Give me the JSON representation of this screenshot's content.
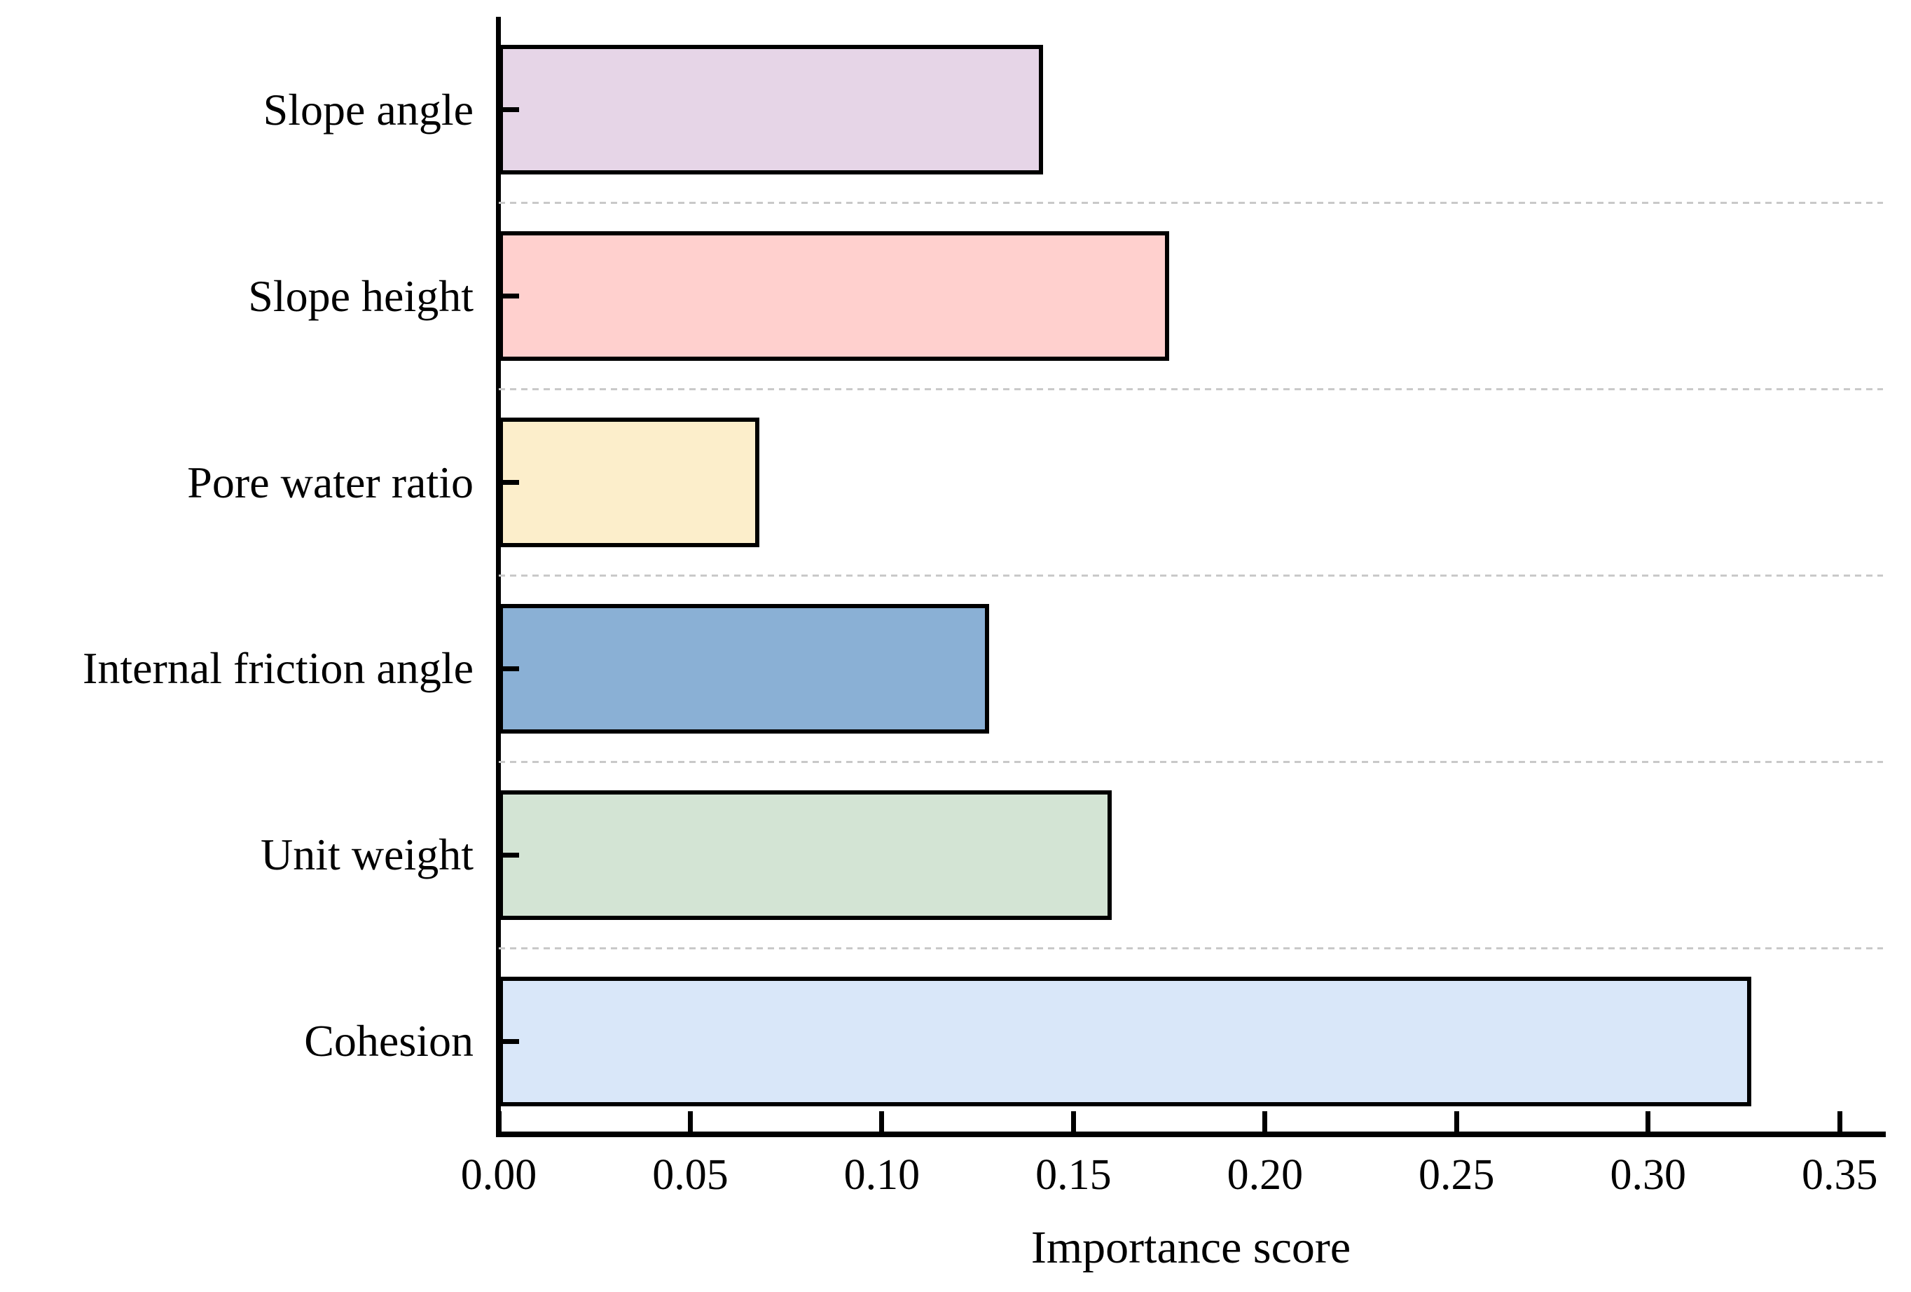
{
  "figure": {
    "background_color": "#ffffff",
    "axis_color": "#000000",
    "text_color": "#000000"
  },
  "chart_data": {
    "type": "bar",
    "orientation": "horizontal",
    "title": "",
    "xlabel": "Importance score",
    "ylabel": "",
    "categories": [
      "Slope angle",
      "Slope height",
      "Pore water ratio",
      "Internal friction angle",
      "Unit weight",
      "Cohesion"
    ],
    "values": [
      0.142,
      0.175,
      0.068,
      0.128,
      0.16,
      0.327
    ],
    "bar_colors": [
      "#e6d5e7",
      "#ffd0ce",
      "#fceecb",
      "#8ab0d5",
      "#d3e4d4",
      "#d9e7f9"
    ],
    "bar_edge_color": "#000000",
    "x_tick_values": [
      0.0,
      0.05,
      0.1,
      0.15,
      0.2,
      0.25,
      0.3,
      0.35
    ],
    "x_tick_labels": [
      "0.00",
      "0.05",
      "0.10",
      "0.15",
      "0.20",
      "0.25",
      "0.30",
      "0.35"
    ],
    "xlim": [
      0,
      0.3613
    ],
    "grid": {
      "style": "dashed",
      "color": "#c9c9c9",
      "placement": "horizontal-between-category-slots"
    },
    "legend_position": "none",
    "ticks_direction": "in"
  }
}
